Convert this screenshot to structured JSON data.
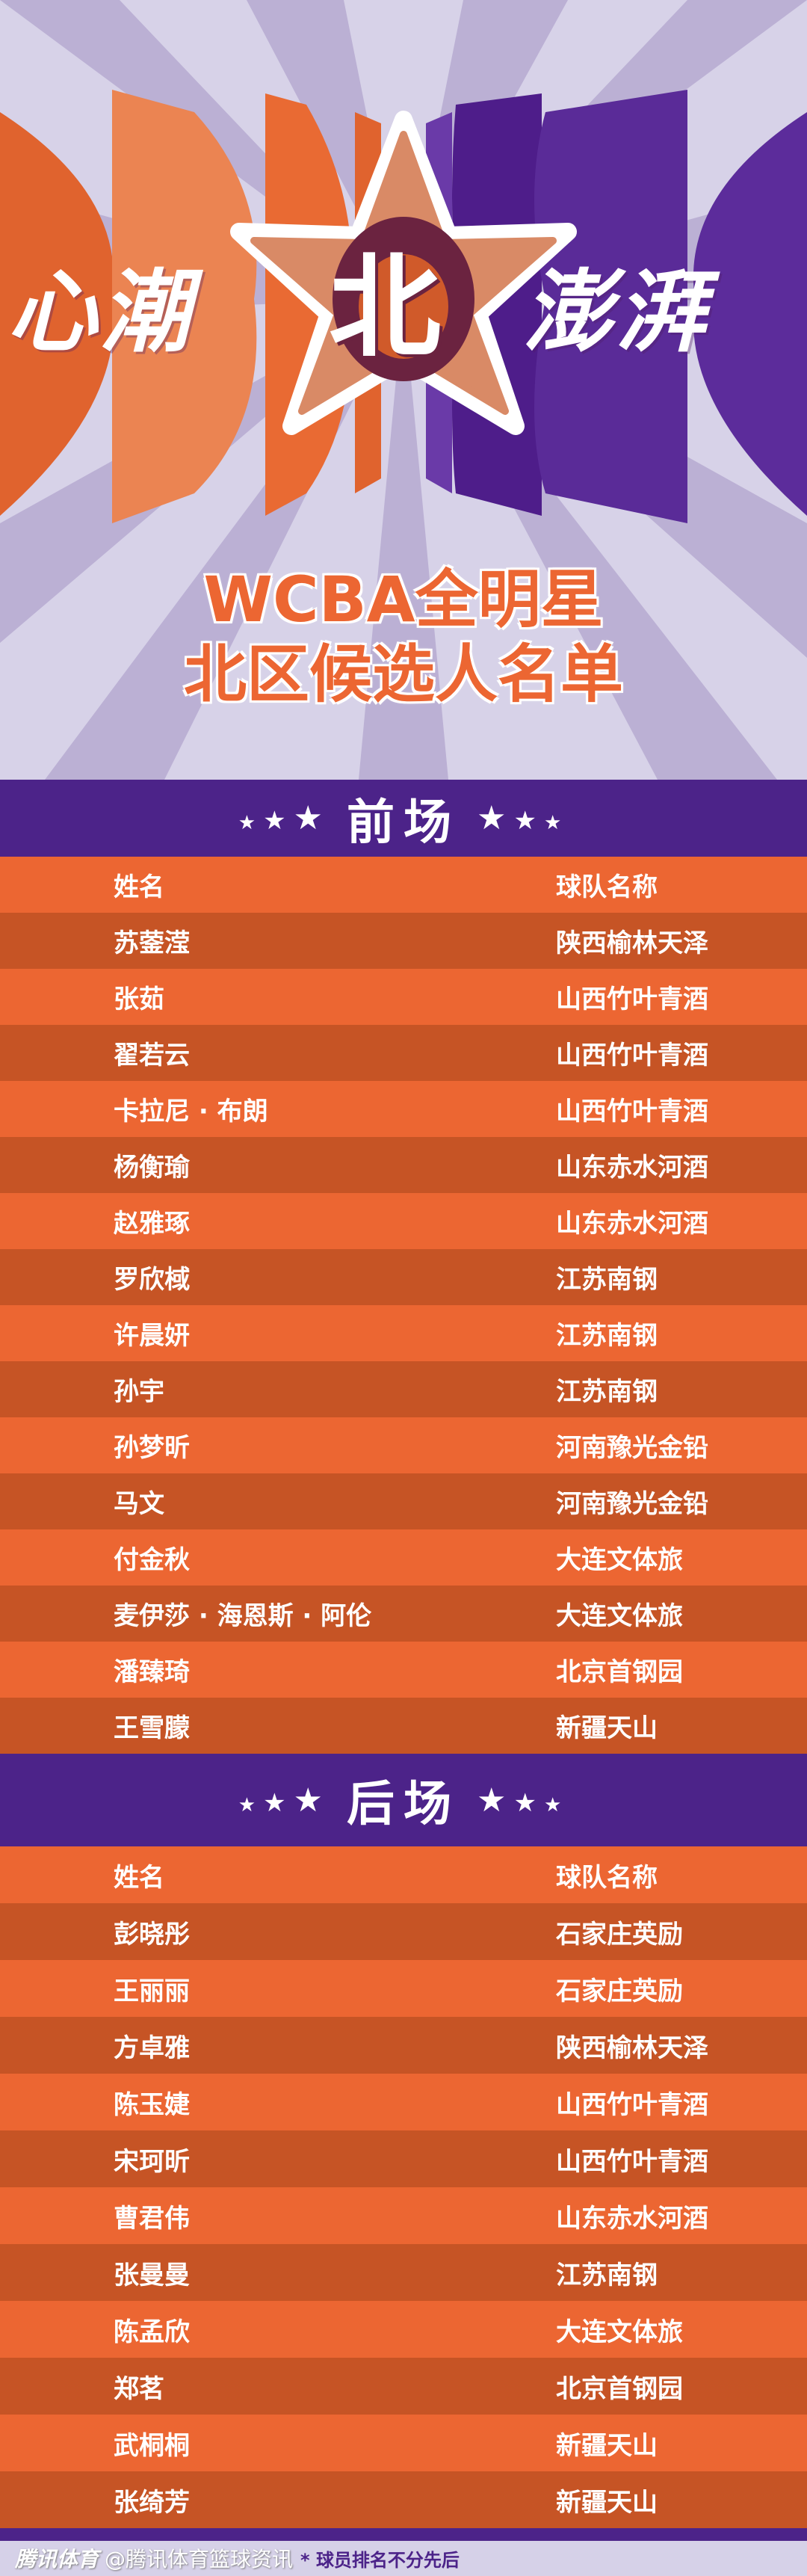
{
  "banner": {
    "slogan_left": "心潮",
    "slogan_center": "北",
    "slogan_right": "澎湃",
    "title_line1": "WCBA全明星",
    "title_line2": "北区候选人名单"
  },
  "colors": {
    "purple": "#4c2389",
    "orange": "#ec6632",
    "orange_dark": "#c65425",
    "lavender": "#d6d1e8"
  },
  "sections": [
    {
      "label": "前场",
      "header": {
        "name": "姓名",
        "team": "球队名称"
      },
      "rows": [
        {
          "name": "苏蓥滢",
          "team": "陕西榆林天泽"
        },
        {
          "name": "张茹",
          "team": "山西竹叶青酒"
        },
        {
          "name": "翟若云",
          "team": "山西竹叶青酒"
        },
        {
          "name": "卡拉尼 · 布朗",
          "team": "山西竹叶青酒"
        },
        {
          "name": "杨衡瑜",
          "team": "山东赤水河酒"
        },
        {
          "name": "赵雅琢",
          "team": "山东赤水河酒"
        },
        {
          "name": "罗欣棫",
          "team": "江苏南钢"
        },
        {
          "name": "许晨妍",
          "team": "江苏南钢"
        },
        {
          "name": "孙宇",
          "team": "江苏南钢"
        },
        {
          "name": "孙梦昕",
          "team": "河南豫光金铅"
        },
        {
          "name": "马文",
          "team": "河南豫光金铅"
        },
        {
          "name": "付金秋",
          "team": "大连文体旅"
        },
        {
          "name": "麦伊莎 · 海恩斯 · 阿伦",
          "team": "大连文体旅"
        },
        {
          "name": "潘臻琦",
          "team": "北京首钢园"
        },
        {
          "name": "王雪朦",
          "team": "新疆天山"
        }
      ]
    },
    {
      "label": "后场",
      "header": {
        "name": "姓名",
        "team": "球队名称"
      },
      "rows": [
        {
          "name": "彭晓彤",
          "team": "石家庄英励"
        },
        {
          "name": "王丽丽",
          "team": "石家庄英励"
        },
        {
          "name": "方卓雅",
          "team": "陕西榆林天泽"
        },
        {
          "name": "陈玉婕",
          "team": "山西竹叶青酒"
        },
        {
          "name": "宋珂昕",
          "team": "山西竹叶青酒"
        },
        {
          "name": "曹君伟",
          "team": "山东赤水河酒"
        },
        {
          "name": "张曼曼",
          "team": "江苏南钢"
        },
        {
          "name": "陈孟欣",
          "team": "大连文体旅"
        },
        {
          "name": "郑茗",
          "team": "北京首钢园"
        },
        {
          "name": "武桐桐",
          "team": "新疆天山"
        },
        {
          "name": "张绮芳",
          "team": "新疆天山"
        }
      ]
    }
  ],
  "footer": {
    "watermark_brand": "腾讯体育",
    "watermark_account": "@腾讯体育篮球资讯",
    "note": "* 球员排名不分先后"
  }
}
